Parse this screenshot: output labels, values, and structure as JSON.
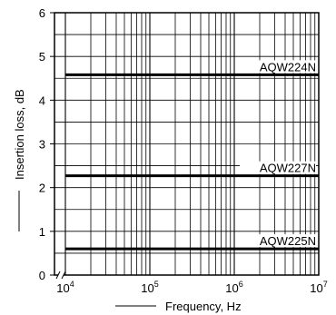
{
  "chart_data": {
    "type": "line",
    "title": "",
    "xlabel": "Frequency, Hz",
    "ylabel": "Insertion loss, dB",
    "x_scale": "log",
    "xlim": [
      10000,
      10000000
    ],
    "ylim": [
      0,
      6
    ],
    "y_ticks": [
      0,
      1,
      2,
      3,
      4,
      5,
      6
    ],
    "x_ticks": [
      {
        "value": 10000,
        "base": "10",
        "exp": "4"
      },
      {
        "value": 100000,
        "base": "10",
        "exp": "5"
      },
      {
        "value": 1000000,
        "base": "10",
        "exp": "6"
      },
      {
        "value": 10000000,
        "base": "10",
        "exp": "7"
      }
    ],
    "axis_break": "x",
    "grid": true,
    "series": [
      {
        "name": "AQW224N",
        "x": [
          10000,
          10000000
        ],
        "y": [
          4.58,
          4.58
        ]
      },
      {
        "name": "AQW227N",
        "x": [
          10000,
          10000000
        ],
        "y": [
          2.27,
          2.27
        ]
      },
      {
        "name": "AQW225N",
        "x": [
          10000,
          10000000
        ],
        "y": [
          0.6,
          0.6
        ]
      }
    ]
  }
}
